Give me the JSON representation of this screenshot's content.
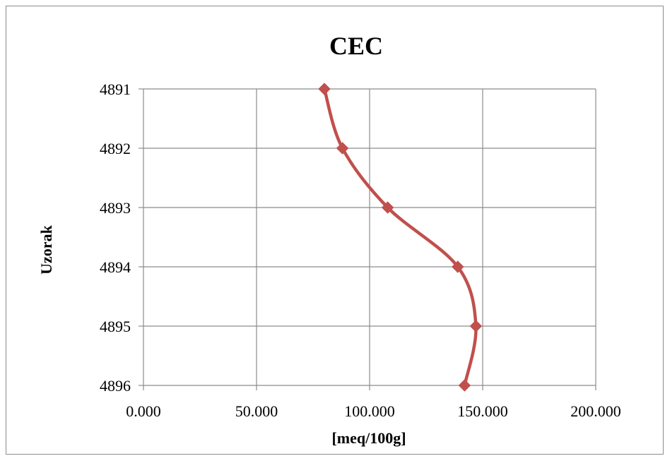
{
  "chart_data": {
    "type": "line",
    "title": "CEC",
    "xlabel": "[meq/100g]",
    "ylabel": "Uzorak",
    "xlim": [
      0,
      200
    ],
    "x_ticks": [
      0,
      50,
      100,
      150,
      200
    ],
    "x_tick_labels": [
      "0.000",
      "50.000",
      "100.000",
      "150.000",
      "200.000"
    ],
    "categories": [
      "4891",
      "4892",
      "4893",
      "4894",
      "4895",
      "4896"
    ],
    "y_orientation": "top-to-bottom",
    "grid": true,
    "legend": "none",
    "smooth": true,
    "series": [
      {
        "values": [
          80,
          88,
          108,
          139,
          147,
          142
        ],
        "color": "#C0504D",
        "marker": "diamond"
      }
    ]
  }
}
